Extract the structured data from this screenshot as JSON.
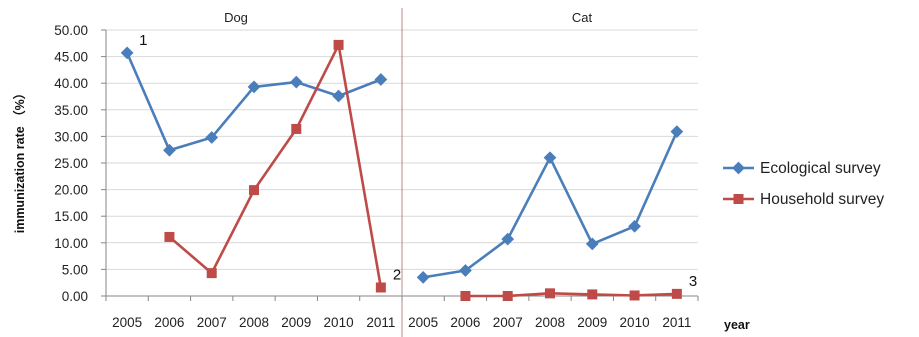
{
  "chart_data": {
    "type": "line",
    "ylabel": "immunization rate （%）",
    "xlabel": "year",
    "ylim": [
      0,
      50
    ],
    "y_ticks": [
      "0.00",
      "5.00",
      "10.00",
      "15.00",
      "20.00",
      "25.00",
      "30.00",
      "35.00",
      "40.00",
      "45.00",
      "50.00"
    ],
    "categories": [
      "2005",
      "2006",
      "2007",
      "2008",
      "2009",
      "2010",
      "2011"
    ],
    "panels": [
      {
        "title": "Dog",
        "series": [
          {
            "name": "Ecological survey",
            "values": [
              45.7,
              27.4,
              29.8,
              39.3,
              40.2,
              37.6,
              40.7
            ]
          },
          {
            "name": "Household survey",
            "values": [
              null,
              11.1,
              4.3,
              19.9,
              31.4,
              47.2,
              1.6
            ]
          }
        ],
        "annotations": [
          {
            "text": "1",
            "series": 0,
            "index": 0
          },
          {
            "text": "2",
            "series": 1,
            "index": 6
          }
        ]
      },
      {
        "title": "Cat",
        "series": [
          {
            "name": "Ecological survey",
            "values": [
              3.5,
              4.8,
              10.7,
              26.0,
              9.8,
              13.1,
              30.9
            ]
          },
          {
            "name": "Household survey",
            "values": [
              null,
              0.0,
              0.0,
              0.5,
              0.3,
              0.1,
              0.4
            ]
          }
        ],
        "annotations": [
          {
            "text": "3",
            "series": 1,
            "index": 6
          }
        ]
      }
    ],
    "legend": {
      "position": "right",
      "entries": [
        "Ecological survey",
        "Household survey"
      ]
    },
    "colors": {
      "ecological": "#4A7EBB",
      "household": "#BE4B48",
      "gridline": "#D9D9D9",
      "axis": "#868686",
      "divider": "#B48A8A"
    },
    "markers": {
      "ecological": "diamond",
      "household": "square"
    }
  }
}
